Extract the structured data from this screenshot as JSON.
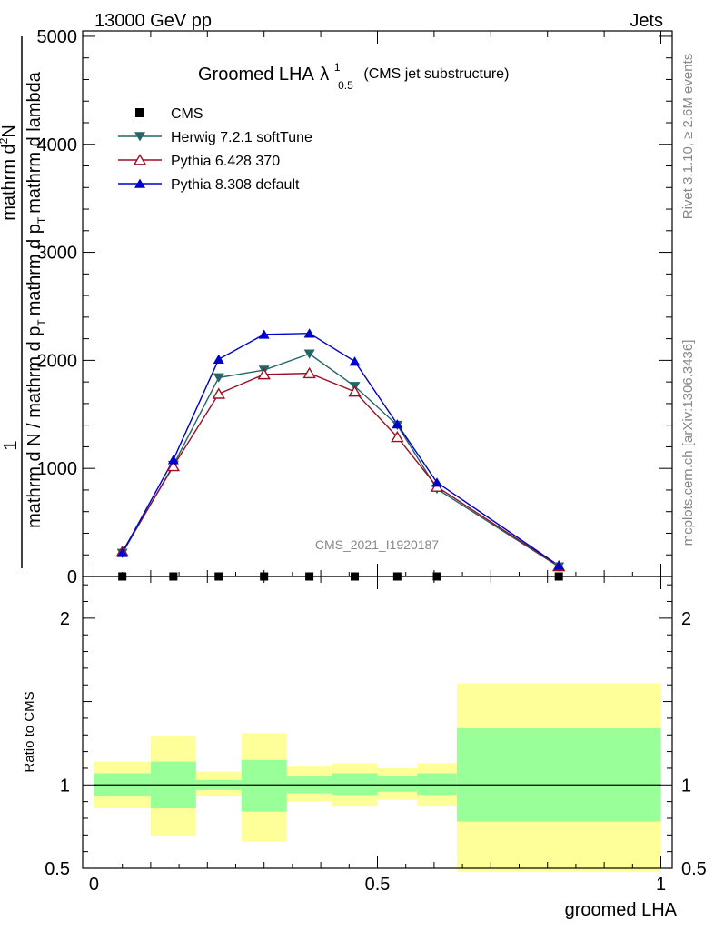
{
  "header": {
    "left_title": "13000 GeV pp",
    "right_title": "Jets"
  },
  "chart_data": [
    {
      "type": "line",
      "title_main": "Groomed LHA",
      "title_lambda": "λ",
      "title_sup": "1",
      "title_sub": "0.5",
      "title_suffix": "(CMS jet substructure)",
      "ylabel_num": "1",
      "ylabel_top": "mathrm d",
      "ylabel_top_sup": "2",
      "ylabel_top_rest": "N",
      "ylabel_den": "mathrm d N / mathrm d p",
      "ylabel_den_sub": "T",
      "ylabel_den_rest": "mathrm d p",
      "ylabel_den_sub2": "T",
      "ylabel_den_tail": "mathrm d lambda",
      "xlim": [
        -0.02,
        1.02
      ],
      "ylim": [
        0,
        5050
      ],
      "yticks": [
        {
          "v": 0,
          "label": "0"
        },
        {
          "v": 1000,
          "label": "1000"
        },
        {
          "v": 2000,
          "label": "2000"
        },
        {
          "v": 3000,
          "label": "3000"
        },
        {
          "v": 4000,
          "label": "4000"
        },
        {
          "v": 5000,
          "label": "5000"
        }
      ],
      "watermark": "CMS_2021_I1920187",
      "right_label_top": "Rivet 3.1.10, ≥ 2.6M events",
      "right_label_bottom": "mcplots.cern.ch [arXiv:1306.3436]",
      "legend": [
        {
          "name": "CMS",
          "color": "#000000",
          "marker": "square"
        },
        {
          "name": "Herwig 7.2.1 softTune",
          "color": "#226666",
          "marker": "tri-down"
        },
        {
          "name": "Pythia 6.428 370",
          "color": "#991122",
          "marker": "tri-up-open"
        },
        {
          "name": "Pythia 8.308 default",
          "color": "#0000cc",
          "marker": "tri-up"
        }
      ],
      "x": [
        0.05,
        0.14,
        0.22,
        0.3,
        0.38,
        0.46,
        0.535,
        0.605,
        0.82
      ],
      "series": [
        {
          "name": "CMS",
          "values": [
            0,
            0,
            0,
            0,
            0,
            0,
            0,
            0,
            0
          ]
        },
        {
          "name": "Herwig 7.2.1 softTune",
          "values": [
            215,
            1030,
            1840,
            1910,
            2060,
            1760,
            1400,
            810,
            90
          ]
        },
        {
          "name": "Pythia 6.428 370",
          "values": [
            230,
            1020,
            1690,
            1870,
            1880,
            1710,
            1290,
            830,
            95
          ]
        },
        {
          "name": "Pythia 8.308 default",
          "values": [
            220,
            1080,
            2010,
            2240,
            2250,
            1990,
            1410,
            870,
            100
          ]
        }
      ]
    },
    {
      "type": "area",
      "ylabel": "Ratio to CMS",
      "xlabel": "groomed LHA",
      "xlim": [
        -0.02,
        1.02
      ],
      "ylim": [
        0.5,
        2.25
      ],
      "reference": 1,
      "yticks": [
        {
          "v": 0.5,
          "label": "0.5"
        },
        {
          "v": 1,
          "label": "1"
        },
        {
          "v": 2,
          "label": "2"
        }
      ],
      "xticks": [
        {
          "v": 0,
          "label": "0"
        },
        {
          "v": 0.5,
          "label": "0.5"
        },
        {
          "v": 1,
          "label": "1"
        }
      ],
      "bins": [
        {
          "lo": 0.0,
          "hi": 0.1,
          "green": [
            0.93,
            1.07
          ],
          "yellow": [
            0.86,
            1.14
          ]
        },
        {
          "lo": 0.1,
          "hi": 0.18,
          "green": [
            0.86,
            1.14
          ],
          "yellow": [
            0.69,
            1.29
          ]
        },
        {
          "lo": 0.18,
          "hi": 0.26,
          "green": [
            0.97,
            1.03
          ],
          "yellow": [
            0.93,
            1.08
          ]
        },
        {
          "lo": 0.26,
          "hi": 0.34,
          "green": [
            0.84,
            1.15
          ],
          "yellow": [
            0.66,
            1.31
          ]
        },
        {
          "lo": 0.34,
          "hi": 0.42,
          "green": [
            0.95,
            1.05
          ],
          "yellow": [
            0.9,
            1.11
          ]
        },
        {
          "lo": 0.42,
          "hi": 0.5,
          "green": [
            0.94,
            1.07
          ],
          "yellow": [
            0.87,
            1.13
          ]
        },
        {
          "lo": 0.5,
          "hi": 0.57,
          "green": [
            0.96,
            1.05
          ],
          "yellow": [
            0.91,
            1.1
          ]
        },
        {
          "lo": 0.57,
          "hi": 0.64,
          "green": [
            0.94,
            1.07
          ],
          "yellow": [
            0.87,
            1.13
          ]
        },
        {
          "lo": 0.64,
          "hi": 1.0,
          "green": [
            0.78,
            1.34
          ],
          "yellow": [
            0.48,
            1.61
          ]
        }
      ]
    }
  ],
  "colors": {
    "green": "#99ff99",
    "yellow": "#ffff99",
    "axis": "#000000",
    "grey": "#888888"
  }
}
